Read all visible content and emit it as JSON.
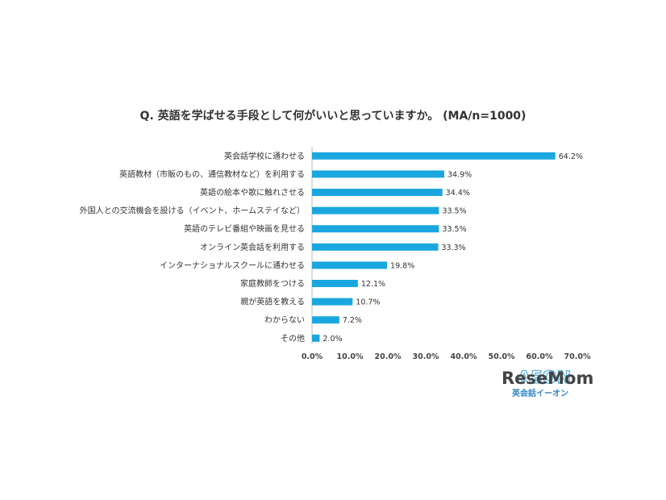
{
  "chart_data": {
    "type": "bar",
    "orientation": "horizontal",
    "title": "Q. 英語を学ばせる手段として何がいいと思っていますか。 (MA/n=1000)",
    "categories": [
      "英会話学校に通わせる",
      "英語教材（市販のもの、通信教材など）を利用する",
      "英語の絵本や歌に触れさせる",
      "外国人との交流機会を設ける（イベント、ホームステイなど）",
      "英語のテレビ番組や映画を見せる",
      "オンライン英会話を利用する",
      "インターナショナルスクールに通わせる",
      "家庭教師をつける",
      "親が英語を教える",
      "わからない",
      "その他"
    ],
    "values": [
      64.2,
      34.9,
      34.4,
      33.5,
      33.5,
      33.3,
      19.8,
      12.1,
      10.7,
      7.2,
      2.0
    ],
    "value_labels": [
      "64.2%",
      "34.9%",
      "34.4%",
      "33.5%",
      "33.5%",
      "33.3%",
      "19.8%",
      "12.1%",
      "10.7%",
      "7.2%",
      "2.0%"
    ],
    "xlim": [
      0,
      70
    ],
    "x_ticks": [
      "0.0%",
      "10.0%",
      "20.0%",
      "30.0%",
      "40.0%",
      "50.0%",
      "60.0%",
      "70.0%"
    ],
    "grid": false,
    "bar_color": "#1aa7e0"
  },
  "watermark": {
    "logo_text": "ReseMom",
    "ghost_logo": "AEON",
    "subtitle": "英会話イーオン"
  }
}
